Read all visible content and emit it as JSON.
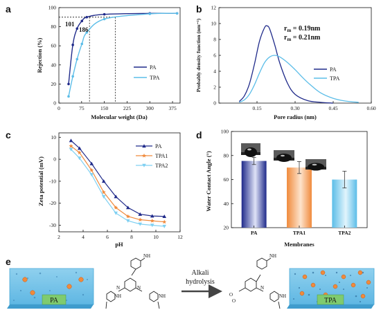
{
  "colors": {
    "pa": "#1f2a8a",
    "tpa": "#5bbde8",
    "tpa1": "#f08a3c",
    "tpa2": "#7fd0f2"
  },
  "chart_data": [
    {
      "id": "a",
      "panel_label": "a",
      "type": "line",
      "xlabel": "Molecular weight (Da)",
      "ylabel": "Rejection (%)",
      "xlim": [
        0,
        400
      ],
      "ylim": [
        0,
        100
      ],
      "xticks": [
        "0",
        "75",
        "150",
        "225",
        "300",
        "375"
      ],
      "yticks": [
        "0",
        "20",
        "40",
        "60",
        "80",
        "100"
      ],
      "legend_placement": "bottom-right",
      "series": [
        {
          "name": "PA",
          "color": "#1f2a8a",
          "x": [
            32,
            46,
            60,
            76,
            92,
            150,
            300,
            390
          ],
          "y": [
            20,
            61,
            78,
            86,
            90,
            93,
            94,
            94
          ]
        },
        {
          "name": "TPA",
          "color": "#5bbde8",
          "x": [
            32,
            46,
            60,
            76,
            92,
            150,
            300,
            390
          ],
          "y": [
            7,
            28,
            46,
            62,
            74,
            88,
            93.5,
            94
          ]
        }
      ],
      "annotations": [
        {
          "text": "101",
          "color": "#1f2a8a",
          "x": 101
        },
        {
          "text": "186",
          "color": "#5bbde8",
          "x": 186
        }
      ],
      "reference_line_y": 90
    },
    {
      "id": "b",
      "panel_label": "b",
      "type": "line",
      "xlabel": "Pore radius (nm)",
      "ylabel": "Probably density function (nm⁻¹)",
      "xlim": [
        0,
        0.6
      ],
      "ylim": [
        0,
        12
      ],
      "xticks": [
        "0.15",
        "0.30",
        "0.45",
        "0.60"
      ],
      "yticks": [
        "0",
        "2",
        "4",
        "6",
        "8",
        "10",
        "12"
      ],
      "legend_placement": "right",
      "series": [
        {
          "name": "PA",
          "color": "#1f2a8a",
          "x": [
            0.08,
            0.1,
            0.12,
            0.14,
            0.16,
            0.18,
            0.19,
            0.2,
            0.22,
            0.24,
            0.27,
            0.3,
            0.35,
            0.4,
            0.45
          ],
          "y": [
            0.2,
            0.9,
            2.4,
            4.9,
            7.8,
            9.5,
            9.7,
            9.3,
            7.3,
            5.0,
            2.5,
            1.1,
            0.3,
            0.1,
            0.0
          ]
        },
        {
          "name": "TPA",
          "color": "#5bbde8",
          "x": [
            0.08,
            0.1,
            0.12,
            0.14,
            0.16,
            0.18,
            0.2,
            0.22,
            0.24,
            0.27,
            0.3,
            0.33,
            0.36,
            0.4,
            0.45,
            0.5,
            0.55
          ],
          "y": [
            0.1,
            0.4,
            1.1,
            2.3,
            3.8,
            5.1,
            5.8,
            6.0,
            5.8,
            5.1,
            4.2,
            3.2,
            2.3,
            1.3,
            0.6,
            0.25,
            0.1
          ]
        }
      ],
      "annotations": [
        {
          "text": "r",
          "sub": "m",
          "value": " = 0.19nm",
          "color": "#1f2a8a"
        },
        {
          "text": "r",
          "sub": "m",
          "value": " = 0.21nm",
          "color": "#5bbde8"
        }
      ]
    },
    {
      "id": "c",
      "panel_label": "c",
      "type": "line",
      "xlabel": "pH",
      "ylabel": "Zeta potential (mV)",
      "xlim": [
        2,
        12
      ],
      "ylim": [
        -33,
        12
      ],
      "xticks": [
        "2",
        "4",
        "6",
        "8",
        "10",
        "12"
      ],
      "yticks": [
        "10",
        "0",
        "-10",
        "-20",
        "-30"
      ],
      "legend_placement": "top-right",
      "series": [
        {
          "name": "PA",
          "color": "#1f2a8a",
          "marker": "triangle",
          "x": [
            3,
            3.7,
            4.7,
            5.7,
            6.7,
            7.7,
            8.7,
            9.7,
            10.7
          ],
          "y": [
            8.5,
            5,
            -2,
            -10,
            -17,
            -22,
            -25,
            -25.8,
            -26
          ]
        },
        {
          "name": "TPA1",
          "color": "#f08a3c",
          "marker": "star",
          "x": [
            3,
            3.7,
            4.7,
            5.7,
            6.7,
            7.7,
            8.7,
            9.7,
            10.7
          ],
          "y": [
            6,
            3,
            -5,
            -15,
            -22,
            -26,
            -27.5,
            -28,
            -28.5
          ]
        },
        {
          "name": "TPA2",
          "color": "#7fd0f2",
          "marker": "triangle",
          "x": [
            3,
            3.7,
            4.7,
            5.7,
            6.7,
            7.7,
            8.7,
            9.7,
            10.7
          ],
          "y": [
            4.5,
            0.5,
            -7,
            -17,
            -24.5,
            -28,
            -29.5,
            -30,
            -30.5
          ]
        }
      ]
    },
    {
      "id": "d",
      "panel_label": "d",
      "type": "bar",
      "xlabel": "Membranes",
      "ylabel": "Water Contact Angle (°)",
      "ylim": [
        20,
        100
      ],
      "yticks": [
        "20",
        "40",
        "60",
        "80",
        "100"
      ],
      "categories": [
        "PA",
        "TPA1",
        "TPA2"
      ],
      "values": [
        75.5,
        70,
        60
      ],
      "errors": [
        3,
        5,
        7
      ],
      "colors": [
        "#1f2a8a",
        "#f08a3c",
        "#5bbde8"
      ]
    }
  ],
  "panel_e": {
    "label": "e",
    "left_sheet_label": "PA",
    "right_sheet_label": "TPA",
    "reaction_line1": "Alkali",
    "reaction_line2": "hydrolysis"
  }
}
